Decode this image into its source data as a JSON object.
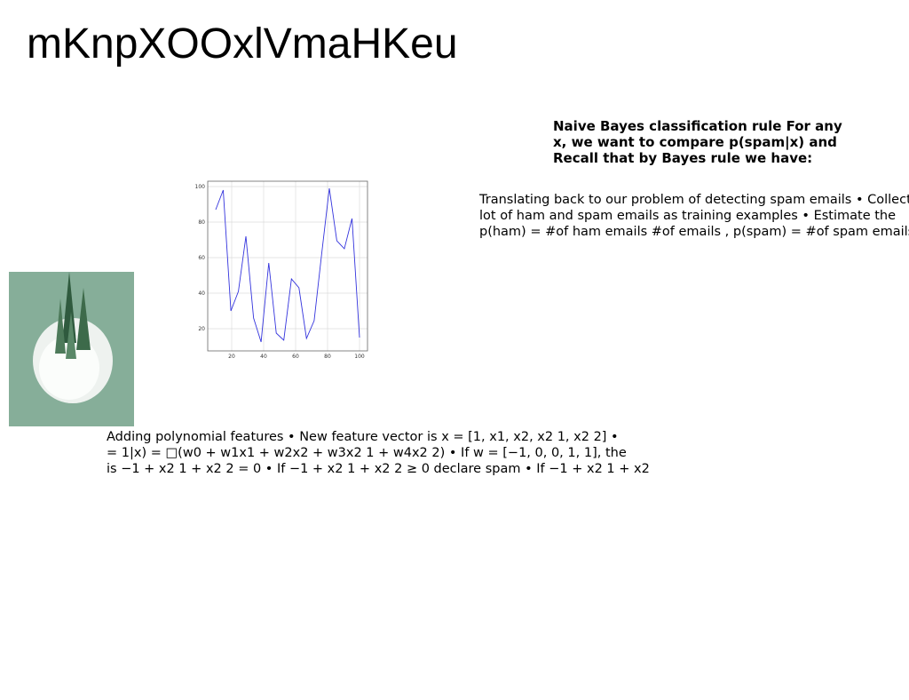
{
  "title": "mKnpXOOxlVmaHKeu",
  "blocks": [
    {
      "lines": [
        "Naive Bayes classification rule For any",
        "x, we want to compare p(spam|x) and",
        "Recall that by Bayes rule we have:"
      ]
    },
    {
      "lines": [
        "Translating back to our problem of detecting spam emails • Collect",
        "lot of ham and spam emails as training examples • Estimate the",
        "p(ham) = #of ham emails #of emails , p(spam) = #of spam emails"
      ]
    },
    {
      "lines": [
        "Adding polynomial features • New feature vector is x = [1, x1, x2, x2 1, x2 2] •",
        "= 1|x) = □(w0 + w1x1 + w2x2 + w3x2 1 + w4x2 2) • If w = [−1, 0, 0, 1, 1], the",
        "is −1 + x2 1 + x2 2 = 0 • If −1 + x2 1 + x2 2 ≥ 0 declare spam • If −1 + x2 1 + x2"
      ]
    }
  ],
  "chart_data": {
    "type": "line",
    "x": [
      10,
      14.7,
      19.5,
      24.2,
      28.9,
      33.7,
      38.4,
      43.2,
      47.9,
      52.6,
      57.4,
      62.1,
      66.8,
      71.6,
      76.3,
      81.1,
      85.8,
      90.5,
      95.3,
      100
    ],
    "series": [
      {
        "color": "#3333dd",
        "values": [
          87,
          98,
          30,
          41,
          72,
          26,
          12.5,
          57,
          17.5,
          13.5,
          48,
          43,
          14.5,
          24.5,
          62,
          99,
          69.5,
          65,
          82,
          15
        ]
      }
    ],
    "xlim": [
      5,
      105
    ],
    "ylim": [
      7.5,
      103
    ],
    "xticks": [
      20,
      40,
      60,
      80,
      100
    ],
    "yticks": [
      20,
      40,
      60,
      80,
      100
    ],
    "grid": true
  }
}
